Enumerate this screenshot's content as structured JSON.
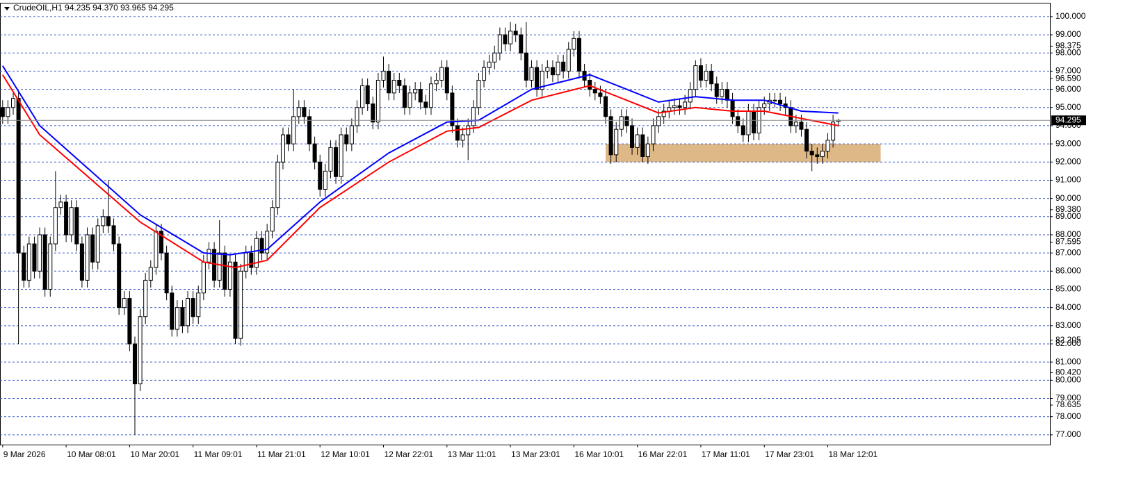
{
  "chart_data": {
    "type": "candlestick",
    "title": "CrudeOIL,H1  94.235 94.370 93.965 94.295",
    "categories": [
      "9 Mar 2026",
      null,
      null,
      null,
      null,
      null,
      null,
      null,
      null,
      null,
      null,
      null,
      "10 Mar 08:01",
      null,
      null,
      null,
      null,
      null,
      null,
      null,
      null,
      null,
      null,
      null,
      "10 Mar 20:01",
      null,
      null,
      null,
      null,
      null,
      null,
      null,
      null,
      null,
      null,
      null,
      "11 Mar 09:01",
      null,
      null,
      null,
      null,
      null,
      null,
      null,
      null,
      null,
      null,
      null,
      "11 Mar 21:01",
      null,
      null,
      null,
      null,
      null,
      null,
      null,
      null,
      null,
      null,
      null,
      "12 Mar 10:01",
      null,
      null,
      null,
      null,
      null,
      null,
      null,
      null,
      null,
      null,
      null,
      "12 Mar 22:01",
      null,
      null,
      null,
      null,
      null,
      null,
      null,
      null,
      null,
      null,
      null,
      "13 Mar 11:01",
      null,
      null,
      null,
      null,
      null,
      null,
      null,
      null,
      null,
      null,
      null,
      "13 Mar 23:01",
      null,
      null,
      null,
      null,
      null,
      null,
      null,
      null,
      null,
      null,
      null,
      "16 Mar 10:01",
      null,
      null,
      null,
      null,
      null,
      null,
      null,
      null,
      null,
      null,
      null,
      "16 Mar 22:01",
      null,
      null,
      null,
      null,
      null,
      null,
      null,
      null,
      null,
      null,
      null,
      "17 Mar 11:01",
      null,
      null,
      null,
      null,
      null,
      null,
      null,
      null,
      null,
      null,
      null,
      "17 Mar 23:01",
      null,
      null,
      null,
      null,
      null,
      null,
      null,
      null,
      null,
      null,
      null,
      "18 Mar 12:01",
      null,
      null
    ],
    "open": [
      95.0,
      94.5,
      95.0,
      95.5,
      87.0,
      85.5,
      87.5,
      86.0,
      88.0,
      85.0,
      87.5,
      89.5,
      89.8,
      88.0,
      89.5,
      87.5,
      85.5,
      88.0,
      86.5,
      88.5,
      89.0,
      88.5,
      87.5,
      84.0,
      84.5,
      82.0,
      79.8,
      83.5,
      85.5,
      86.2,
      88.2,
      87.0,
      84.8,
      82.8,
      84.0,
      83.0,
      84.5,
      83.5,
      84.8,
      86.5,
      87.2,
      85.5,
      87.0,
      85.0,
      86.5,
      82.3,
      86.0,
      87.0,
      86.2,
      87.8,
      87.0,
      88.2,
      89.5,
      92.0,
      93.5,
      93.0,
      94.5,
      95.0,
      94.5,
      93.0,
      92.0,
      90.5,
      91.5,
      92.8,
      91.2,
      93.5,
      93.0,
      94.0,
      95.0,
      96.2,
      95.2,
      94.2,
      96.5,
      97.0,
      95.8,
      96.5,
      96.2,
      95.0,
      95.8,
      96.0,
      95.3,
      95.0,
      96.3,
      96.5,
      97.2,
      95.8,
      94.0,
      93.2,
      93.5,
      94.0,
      95.0,
      96.5,
      97.2,
      97.5,
      98.0,
      99.0,
      98.5,
      99.2,
      99.0,
      98.0,
      96.5,
      97.2,
      96.0,
      97.0,
      97.2,
      96.8,
      97.5,
      97.0,
      98.2,
      98.8,
      97.0,
      96.5,
      96.0,
      95.8,
      95.6,
      94.5,
      92.4,
      93.8,
      94.5,
      94.0,
      92.8,
      93.5,
      92.3,
      93.0,
      94.0,
      94.5,
      94.8,
      95.0,
      95.1,
      95.0,
      95.3,
      96.0,
      97.3,
      96.5,
      97.0,
      96.3,
      95.6,
      96.0,
      95.4,
      94.5,
      94.0,
      93.5,
      94.8,
      93.6,
      95.0,
      95.2,
      95.4,
      95.4,
      95.2,
      95.0,
      94.0,
      94.2,
      93.8,
      92.6,
      92.4,
      92.3,
      92.6,
      93.2,
      94.235
    ],
    "high": [
      95.4,
      95.4,
      95.9,
      95.9,
      87.4,
      87.9,
      87.9,
      88.4,
      88.4,
      87.9,
      91.5,
      90.2,
      90.2,
      89.9,
      89.9,
      87.9,
      88.4,
      88.4,
      88.9,
      89.4,
      91.0,
      88.9,
      87.9,
      84.9,
      84.9,
      82.4,
      83.9,
      85.9,
      86.6,
      88.6,
      88.6,
      87.4,
      85.2,
      84.4,
      84.4,
      84.9,
      84.9,
      85.2,
      86.9,
      87.6,
      87.6,
      88.8,
      87.4,
      86.9,
      86.9,
      86.4,
      87.4,
      87.4,
      88.2,
      88.2,
      88.6,
      89.9,
      92.4,
      93.9,
      93.9,
      96.0,
      95.4,
      95.4,
      94.9,
      93.4,
      92.4,
      91.9,
      93.2,
      93.2,
      93.9,
      93.9,
      94.4,
      95.4,
      96.6,
      96.6,
      95.6,
      96.9,
      97.8,
      97.4,
      96.9,
      96.9,
      96.6,
      96.2,
      96.4,
      96.4,
      95.7,
      96.7,
      96.9,
      97.6,
      97.6,
      96.2,
      94.4,
      93.9,
      94.4,
      95.4,
      96.9,
      97.6,
      97.9,
      98.4,
      99.4,
      99.4,
      99.7,
      99.6,
      99.4,
      99.7,
      97.6,
      97.6,
      97.4,
      97.6,
      97.6,
      97.9,
      97.9,
      98.6,
      99.2,
      99.2,
      97.4,
      96.9,
      96.4,
      96.2,
      96.0,
      94.9,
      94.2,
      94.9,
      94.9,
      94.4,
      93.9,
      93.9,
      93.4,
      94.4,
      94.9,
      95.2,
      95.4,
      95.5,
      95.5,
      95.7,
      96.4,
      97.6,
      97.7,
      97.4,
      97.4,
      96.7,
      96.4,
      96.4,
      95.8,
      94.9,
      94.4,
      95.2,
      95.2,
      95.4,
      95.6,
      95.8,
      95.8,
      95.8,
      95.6,
      95.4,
      94.6,
      94.6,
      94.2,
      93.0,
      92.8,
      93.0,
      93.6,
      94.6,
      94.37
    ],
    "low": [
      94.1,
      94.1,
      94.6,
      82.0,
      85.1,
      85.1,
      85.6,
      85.6,
      84.6,
      84.6,
      87.1,
      89.1,
      87.6,
      87.6,
      87.1,
      85.1,
      85.1,
      86.1,
      86.1,
      88.1,
      88.1,
      87.1,
      83.6,
      83.6,
      81.6,
      77.0,
      79.4,
      83.1,
      85.1,
      85.8,
      86.6,
      84.4,
      82.4,
      82.4,
      82.6,
      82.6,
      83.1,
      83.1,
      84.4,
      86.1,
      85.1,
      85.1,
      84.6,
      84.6,
      82.0,
      81.9,
      85.6,
      85.8,
      85.8,
      86.6,
      86.6,
      87.8,
      89.1,
      91.6,
      92.6,
      92.6,
      94.1,
      94.1,
      92.6,
      91.6,
      90.1,
      90.1,
      91.1,
      90.8,
      90.8,
      92.6,
      92.6,
      93.6,
      94.6,
      94.8,
      93.8,
      93.8,
      96.1,
      95.4,
      95.4,
      95.8,
      94.6,
      94.6,
      95.4,
      94.9,
      94.6,
      94.6,
      95.9,
      96.1,
      95.4,
      93.6,
      92.8,
      92.8,
      92.1,
      93.6,
      94.6,
      96.1,
      96.8,
      97.1,
      97.6,
      98.1,
      98.1,
      98.6,
      97.6,
      96.1,
      96.1,
      95.6,
      95.6,
      96.6,
      96.4,
      96.4,
      96.6,
      96.6,
      97.8,
      96.6,
      96.1,
      95.6,
      95.4,
      95.2,
      94.1,
      91.9,
      92.0,
      93.4,
      93.6,
      92.4,
      92.4,
      92.0,
      91.9,
      92.6,
      93.6,
      94.1,
      94.4,
      94.6,
      94.6,
      94.6,
      94.9,
      95.6,
      96.1,
      96.1,
      95.9,
      95.2,
      95.2,
      95.0,
      94.1,
      93.6,
      93.1,
      93.1,
      93.2,
      93.2,
      94.6,
      94.8,
      95.0,
      94.8,
      94.6,
      93.6,
      93.6,
      93.4,
      92.2,
      91.5,
      91.9,
      91.9,
      92.2,
      92.8,
      93.965
    ],
    "close": [
      94.5,
      95.0,
      95.5,
      87.0,
      85.5,
      87.5,
      86.0,
      88.0,
      85.0,
      87.5,
      89.5,
      89.8,
      88.0,
      89.5,
      87.5,
      85.5,
      88.0,
      86.5,
      88.5,
      89.0,
      88.5,
      87.5,
      84.0,
      84.5,
      82.0,
      79.8,
      83.5,
      85.5,
      86.2,
      88.2,
      87.0,
      84.8,
      82.8,
      84.0,
      83.0,
      84.5,
      83.5,
      84.8,
      86.5,
      87.2,
      85.5,
      87.0,
      85.0,
      86.5,
      82.3,
      86.0,
      87.0,
      86.2,
      87.8,
      87.0,
      88.2,
      89.5,
      92.0,
      93.5,
      93.0,
      94.5,
      95.0,
      94.5,
      93.0,
      92.0,
      90.5,
      91.5,
      92.8,
      91.2,
      93.5,
      93.0,
      94.0,
      95.0,
      96.2,
      95.2,
      94.2,
      96.5,
      97.0,
      95.8,
      96.5,
      96.2,
      95.0,
      95.8,
      96.0,
      95.3,
      95.0,
      96.3,
      96.5,
      97.2,
      95.8,
      94.0,
      93.2,
      93.5,
      94.0,
      95.0,
      96.5,
      97.2,
      97.5,
      98.0,
      99.0,
      98.5,
      99.2,
      99.0,
      98.0,
      96.5,
      97.2,
      96.0,
      97.0,
      97.2,
      96.8,
      97.5,
      97.0,
      98.2,
      98.8,
      97.0,
      96.5,
      96.0,
      95.8,
      95.6,
      94.5,
      92.4,
      93.8,
      94.5,
      94.0,
      92.8,
      93.5,
      92.3,
      93.0,
      94.0,
      94.5,
      94.8,
      95.0,
      95.1,
      95.0,
      95.3,
      96.0,
      97.3,
      96.5,
      97.0,
      96.3,
      95.6,
      96.0,
      95.4,
      94.5,
      94.0,
      93.5,
      94.8,
      93.6,
      95.0,
      95.2,
      95.4,
      95.4,
      95.2,
      95.0,
      94.0,
      94.2,
      93.8,
      92.6,
      92.4,
      92.3,
      92.6,
      93.2,
      94.2,
      94.295
    ],
    "up_color": "#ffffff",
    "down_color": "#000000",
    "outline_color": "#000000",
    "ma_lines": [
      {
        "color": "#0000ff",
        "x": [
          0,
          7,
          26,
          38,
          43,
          50,
          60,
          73,
          84,
          90,
          100,
          111,
          118,
          124,
          131,
          138,
          144,
          151,
          158
        ],
        "values": [
          97.3,
          94.0,
          89.1,
          87.0,
          86.9,
          87.2,
          89.8,
          92.5,
          94.2,
          94.3,
          96.0,
          96.8,
          96.0,
          95.3,
          95.6,
          95.4,
          95.4,
          94.8,
          94.7
        ]
      },
      {
        "color": "#ff0000",
        "x": [
          0,
          7,
          26,
          38,
          44,
          50,
          60,
          73,
          84,
          90,
          100,
          111,
          118,
          124,
          131,
          138,
          144,
          151,
          158
        ],
        "values": [
          96.8,
          93.5,
          88.7,
          86.5,
          86.2,
          86.6,
          89.5,
          92.0,
          93.7,
          93.9,
          95.4,
          96.2,
          95.4,
          94.7,
          95.0,
          94.8,
          94.8,
          94.4,
          94.0
        ]
      }
    ],
    "zone": {
      "x": [
        114,
        166
      ],
      "y": [
        92,
        93
      ],
      "color": "#deb887"
    },
    "xlim": [
      -0.5,
      198
    ],
    "ylim": [
      76.46,
      100.76
    ],
    "yticks": [
      {
        "value": 77,
        "label": "77.000"
      },
      {
        "value": 78,
        "label": "78.000"
      },
      {
        "value": 79,
        "label": "79.000"
      },
      {
        "value": 80,
        "label": "80.000"
      },
      {
        "value": 81,
        "label": "81.000"
      },
      {
        "value": 82,
        "label": "82.000"
      },
      {
        "value": 83,
        "label": "83.000"
      },
      {
        "value": 84,
        "label": "84.000"
      },
      {
        "value": 85,
        "label": "85.000"
      },
      {
        "value": 86,
        "label": "86.000"
      },
      {
        "value": 87,
        "label": "87.000"
      },
      {
        "value": 88,
        "label": "88.000"
      },
      {
        "value": 89,
        "label": "89.000"
      },
      {
        "value": 90,
        "label": "90.000"
      },
      {
        "value": 91,
        "label": "91.000"
      },
      {
        "value": 92,
        "label": "92.000"
      },
      {
        "value": 93,
        "label": "93.000"
      },
      {
        "value": 94,
        "label": "94.000"
      },
      {
        "value": 95,
        "label": "95.000"
      },
      {
        "value": 96,
        "label": "96.000"
      },
      {
        "value": 97,
        "label": "97.000"
      },
      {
        "value": 98,
        "label": "98.000"
      },
      {
        "value": 99,
        "label": "99.000"
      },
      {
        "value": 100,
        "label": "100.000"
      }
    ],
    "scale_labels": [
      {
        "value": 98.375,
        "label": "98.375"
      },
      {
        "value": 96.59,
        "label": "96.590"
      },
      {
        "value": 89.38,
        "label": "89.380"
      },
      {
        "value": 87.595,
        "label": "87.595"
      },
      {
        "value": 82.205,
        "label": "82.205"
      },
      {
        "value": 80.42,
        "label": "80.420"
      },
      {
        "value": 78.635,
        "label": "78.635"
      }
    ],
    "current_price": {
      "value": 94.295,
      "label": "94.295"
    },
    "grid": true,
    "grid_color": "#3c5ec8"
  }
}
